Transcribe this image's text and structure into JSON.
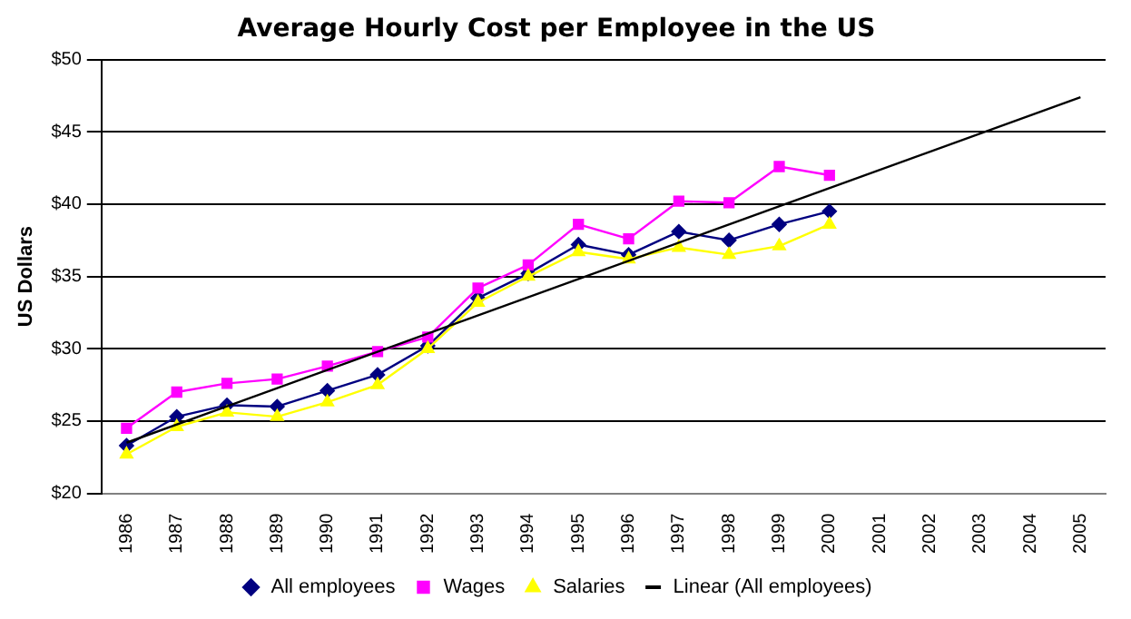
{
  "chart_data": {
    "type": "line",
    "title": "Average Hourly Cost per Employee in the US",
    "ylabel": "US Dollars",
    "categories": [
      "1986",
      "1987",
      "1988",
      "1989",
      "1990",
      "1991",
      "1992",
      "1993",
      "1994",
      "1995",
      "1996",
      "1997",
      "1998",
      "1999",
      "2000",
      "2001",
      "2002",
      "2003",
      "2004",
      "2005"
    ],
    "series": [
      {
        "name": "All employees",
        "color": "#000080",
        "marker": "diamond",
        "values": [
          23.3,
          25.3,
          26.1,
          26.0,
          27.1,
          28.2,
          30.2,
          33.5,
          35.2,
          37.2,
          36.5,
          38.1,
          37.5,
          38.6,
          39.5,
          null,
          null,
          null,
          null,
          null
        ]
      },
      {
        "name": "Wages",
        "color": "#ff00ff",
        "marker": "square",
        "values": [
          24.5,
          27.0,
          27.6,
          27.9,
          28.8,
          29.8,
          30.8,
          34.2,
          35.8,
          38.6,
          37.6,
          40.2,
          40.1,
          42.6,
          42.0,
          null,
          null,
          null,
          null,
          null
        ]
      },
      {
        "name": "Salaries",
        "color": "#ffff00",
        "marker": "triangle",
        "values": [
          22.7,
          24.6,
          25.6,
          25.3,
          26.3,
          27.5,
          30.0,
          33.2,
          35.0,
          36.7,
          36.2,
          37.0,
          36.5,
          37.1,
          38.6,
          null,
          null,
          null,
          null,
          null
        ]
      },
      {
        "name": "Linear (All employees)",
        "color": "#000000",
        "marker": "none",
        "values": [
          23.5,
          null,
          null,
          null,
          null,
          null,
          null,
          null,
          null,
          null,
          null,
          null,
          null,
          null,
          null,
          null,
          null,
          null,
          null,
          47.4
        ]
      }
    ],
    "ylim": [
      20,
      50
    ],
    "yticks": [
      {
        "value": 20,
        "label": "$20"
      },
      {
        "value": 25,
        "label": "$25"
      },
      {
        "value": 30,
        "label": "$30"
      },
      {
        "value": 35,
        "label": "$35"
      },
      {
        "value": 40,
        "label": "$40"
      },
      {
        "value": 45,
        "label": "$45"
      },
      {
        "value": 50,
        "label": "$50"
      }
    ],
    "grid": "y",
    "legend": "bottom"
  }
}
